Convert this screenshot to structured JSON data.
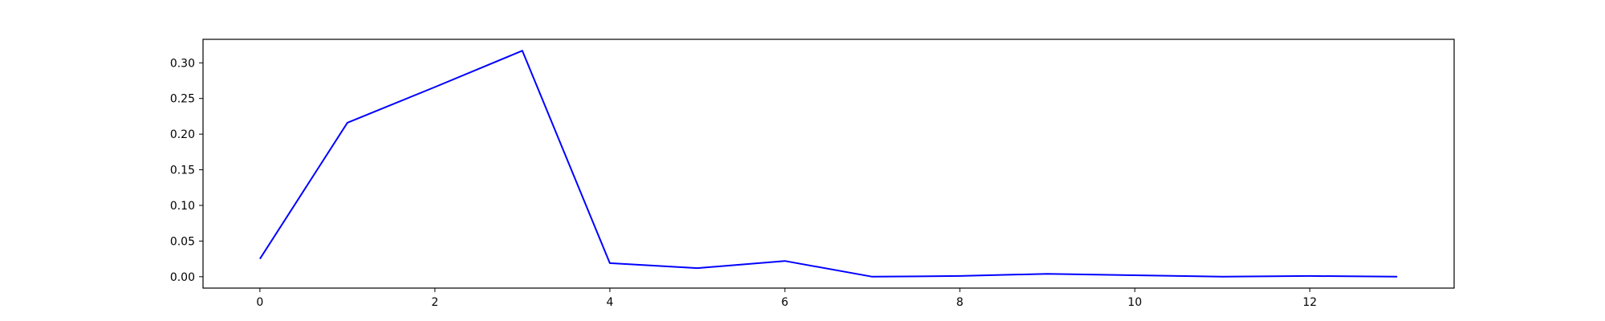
{
  "chart_data": {
    "type": "line",
    "title": "",
    "xlabel": "",
    "ylabel": "",
    "x": [
      0,
      1,
      2,
      3,
      4,
      5,
      6,
      7,
      8,
      9,
      10,
      11,
      12,
      13
    ],
    "series": [
      {
        "color": "#0000ff",
        "values": [
          0.025,
          0.216,
          0.266,
          0.317,
          0.019,
          0.012,
          0.022,
          0.0,
          0.001,
          0.004,
          0.002,
          0.0,
          0.001,
          0.0
        ]
      }
    ],
    "xlim": [
      -0.65,
      13.65
    ],
    "ylim": [
      -0.016,
      0.333
    ],
    "xticks": [
      0,
      2,
      4,
      6,
      8,
      10,
      12
    ],
    "yticks": [
      0.0,
      0.05,
      0.1,
      0.15,
      0.2,
      0.25,
      0.3
    ],
    "xtick_labels": [
      "0",
      "2",
      "4",
      "6",
      "8",
      "10",
      "12"
    ],
    "ytick_labels": [
      "0.00",
      "0.05",
      "0.10",
      "0.15",
      "0.20",
      "0.25",
      "0.30"
    ],
    "grid": false,
    "legend": "none"
  }
}
